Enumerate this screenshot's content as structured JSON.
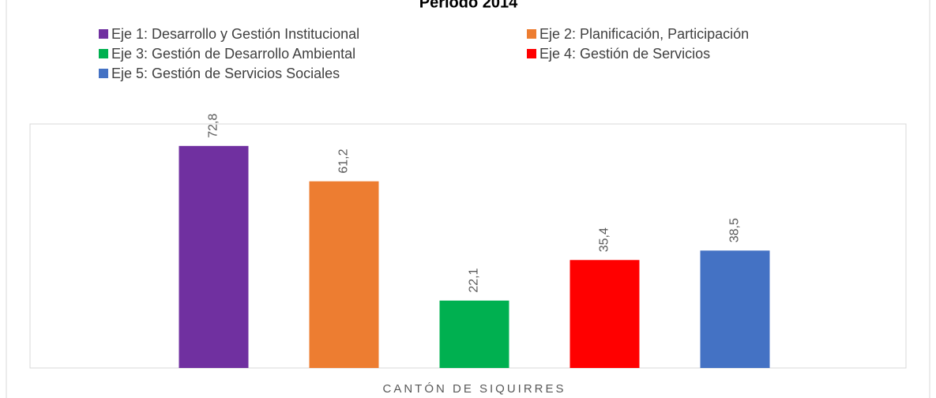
{
  "chart_data": {
    "type": "bar",
    "title": "Periodo 2014",
    "categories": [
      "CANTÓN DE SIQUIRRES"
    ],
    "ylim": [
      0,
      80
    ],
    "series": [
      {
        "name": "Eje 1: Desarrollo y Gestión Institucional",
        "color": "#7030a0",
        "values": [
          72.8
        ],
        "value_labels": [
          "72,8"
        ]
      },
      {
        "name": "Eje 2: Planificación, Participación",
        "color": "#ed7d31",
        "values": [
          61.2
        ],
        "value_labels": [
          "61,2"
        ]
      },
      {
        "name": "Eje 3: Gestión de Desarrollo Ambiental",
        "color": "#00b050",
        "values": [
          22.1
        ],
        "value_labels": [
          "22,1"
        ]
      },
      {
        "name": "Eje 4: Gestión de Servicios",
        "color": "#ff0000",
        "values": [
          35.4
        ],
        "value_labels": [
          "35,4"
        ]
      },
      {
        "name": "Eje 5: Gestión de Servicios Sociales",
        "color": "#4472c4",
        "values": [
          38.5
        ],
        "value_labels": [
          "38,5"
        ]
      }
    ]
  }
}
